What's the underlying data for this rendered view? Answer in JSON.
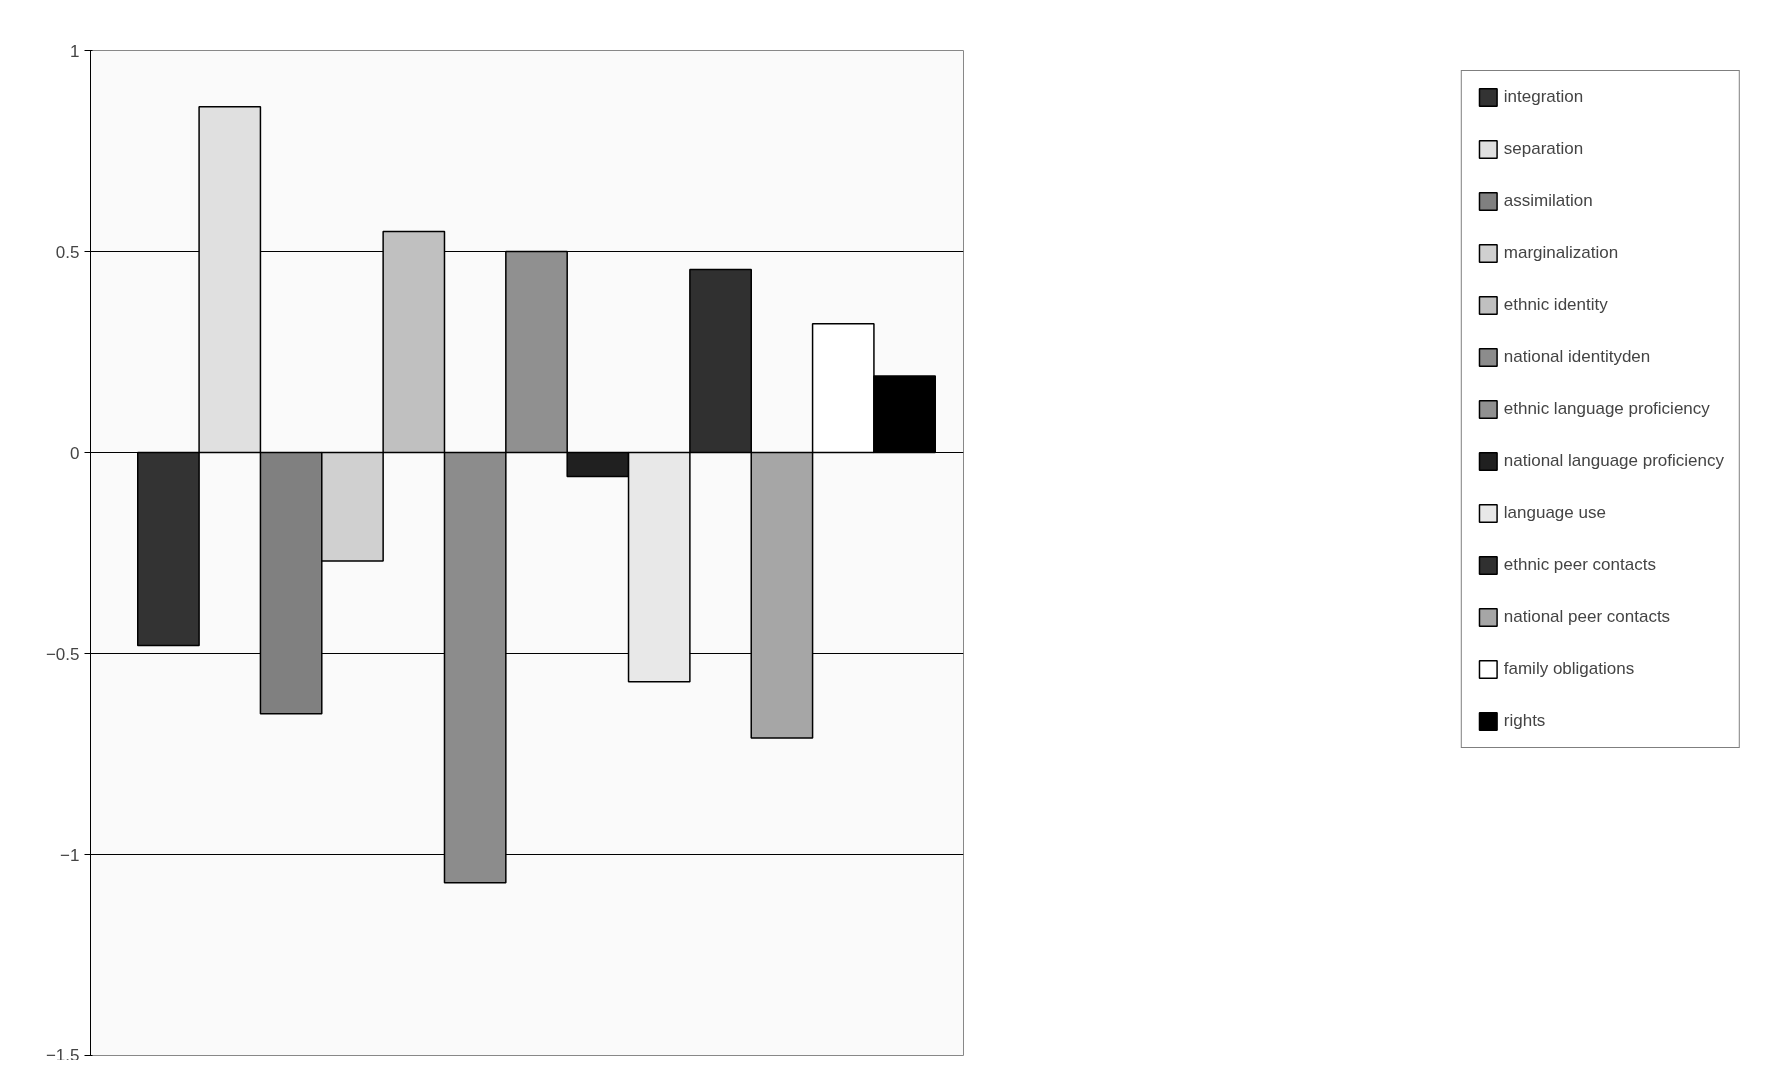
{
  "chart_data": {
    "type": "bar",
    "categories": [
      null
    ],
    "series": [
      {
        "name": "integration",
        "color": "#333333",
        "values": [
          -0.48
        ]
      },
      {
        "name": "separation",
        "color": "#e0e0e0",
        "values": [
          0.86
        ]
      },
      {
        "name": "assimilation",
        "color": "#808080",
        "values": [
          -0.65
        ]
      },
      {
        "name": "marginalization",
        "color": "#d0d0d0",
        "values": [
          -0.27
        ]
      },
      {
        "name": "ethnic identity",
        "color": "#c0c0c0",
        "values": [
          0.55
        ]
      },
      {
        "name": "national identityden",
        "color": "#8c8c8c",
        "values": [
          -1.07
        ]
      },
      {
        "name": "ethnic language proficiency",
        "color": "#909090",
        "values": [
          0.5
        ]
      },
      {
        "name": "national language proficiency",
        "color": "#202020",
        "values": [
          -0.06
        ]
      },
      {
        "name": "language use",
        "color": "#e8e8e8",
        "values": [
          -0.57
        ]
      },
      {
        "name": "ethnic peer contacts",
        "color": "#303030",
        "values": [
          0.455
        ]
      },
      {
        "name": "national peer contacts",
        "color": "#a6a6a6",
        "values": [
          -0.71
        ]
      },
      {
        "name": "family obligations",
        "color": "#ffffff",
        "values": [
          0.32
        ]
      },
      {
        "name": "rights",
        "color": "#000000",
        "values": [
          0.19
        ]
      }
    ],
    "ylim": [
      -1.5,
      1
    ],
    "yticks": [
      -1.5,
      -1,
      -0.5,
      0,
      0.5,
      1
    ],
    "grid": "y",
    "legend": "right",
    "tick_labels": "y"
  }
}
